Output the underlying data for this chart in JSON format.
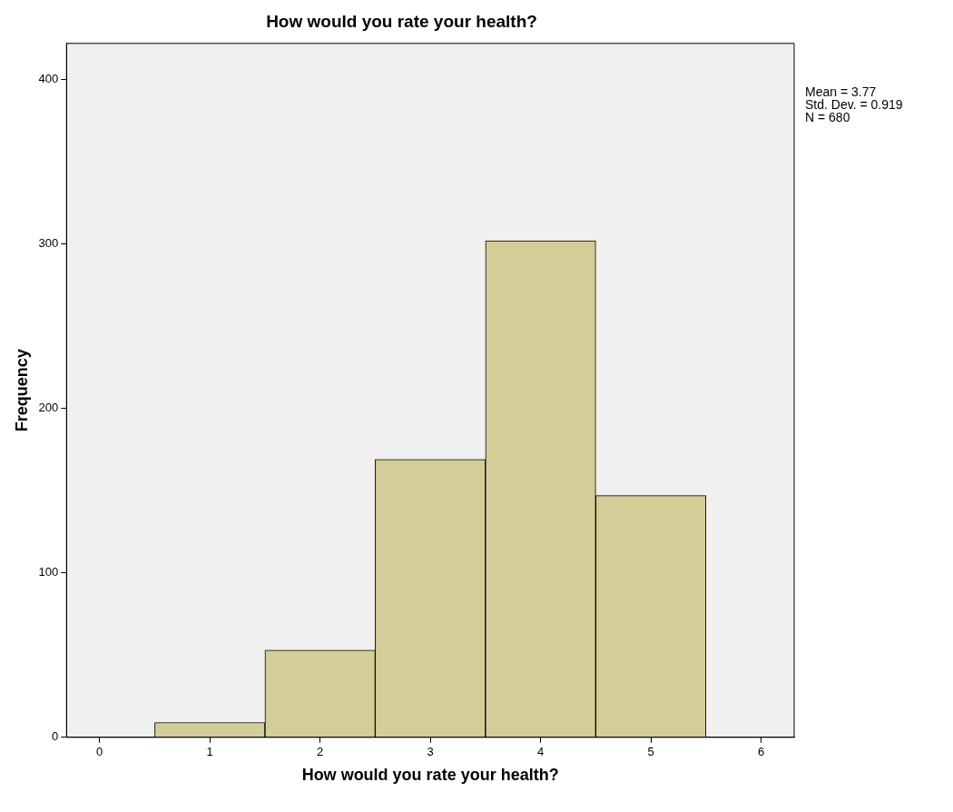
{
  "chart_data": {
    "type": "histogram",
    "title": "How would you rate your health?",
    "xlabel": "How would you rate your health?",
    "ylabel": "Frequency",
    "bins": [
      0.5,
      1.5,
      2.5,
      3.5,
      4.5,
      5.5
    ],
    "values": [
      9,
      53,
      169,
      302,
      147
    ],
    "color": "#d3ce97",
    "xlim": [
      -0.3,
      6.3
    ],
    "xticks": [
      0,
      1,
      2,
      3,
      4,
      5,
      6
    ],
    "ylim": [
      0,
      422
    ],
    "yticks": [
      0,
      100,
      200,
      300,
      400
    ],
    "grid": false,
    "legend": false,
    "annotations": [
      "Mean = 3.77",
      "Std. Dev. = 0.919",
      "N = 680"
    ]
  }
}
